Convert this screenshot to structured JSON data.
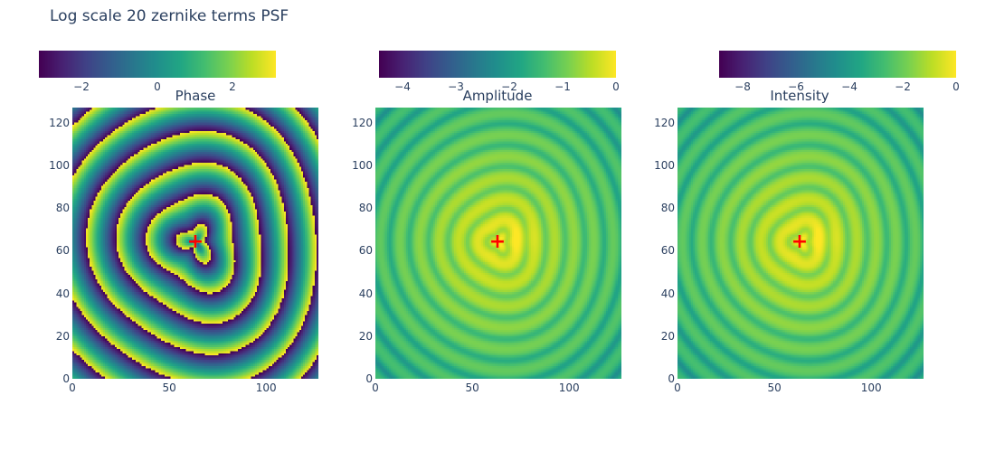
{
  "title": "Log scale 20 zernike terms PSF",
  "chart_data": [
    {
      "type": "heatmap",
      "title": "Phase",
      "colorscale": "viridis",
      "grid_size": 128,
      "xlim": [
        0,
        127
      ],
      "ylim": [
        0,
        127
      ],
      "x_ticks": [
        "0",
        "50",
        "100"
      ],
      "y_ticks": [
        "0",
        "20",
        "40",
        "60",
        "80",
        "100",
        "120"
      ],
      "colorbar_range": [
        -3.14,
        3.14
      ],
      "colorbar_ticks": [
        "−2",
        "0",
        "2"
      ],
      "marker": {
        "x": 64,
        "y": 64,
        "symbol": "+",
        "color": "#ff0000"
      }
    },
    {
      "type": "heatmap",
      "title": "Amplitude",
      "colorscale": "viridis",
      "grid_size": 128,
      "xlim": [
        0,
        127
      ],
      "ylim": [
        0,
        127
      ],
      "x_ticks": [
        "0",
        "50",
        "100"
      ],
      "y_ticks": [
        "0",
        "20",
        "40",
        "60",
        "80",
        "100",
        "120"
      ],
      "colorbar_range": [
        -4.5,
        0
      ],
      "colorbar_ticks": [
        "−4",
        "−3",
        "−2",
        "−1",
        "0"
      ],
      "marker": {
        "x": 64,
        "y": 64,
        "symbol": "+",
        "color": "#ff0000"
      }
    },
    {
      "type": "heatmap",
      "title": "Intensity",
      "colorscale": "viridis",
      "grid_size": 128,
      "xlim": [
        0,
        127
      ],
      "ylim": [
        0,
        127
      ],
      "x_ticks": [
        "0",
        "50",
        "100"
      ],
      "y_ticks": [
        "0",
        "20",
        "40",
        "60",
        "80",
        "100",
        "120"
      ],
      "colorbar_range": [
        -9,
        0
      ],
      "colorbar_ticks": [
        "−8",
        "−6",
        "−4",
        "−2",
        "0"
      ],
      "marker": {
        "x": 64,
        "y": 64,
        "symbol": "+",
        "color": "#ff0000"
      }
    }
  ]
}
